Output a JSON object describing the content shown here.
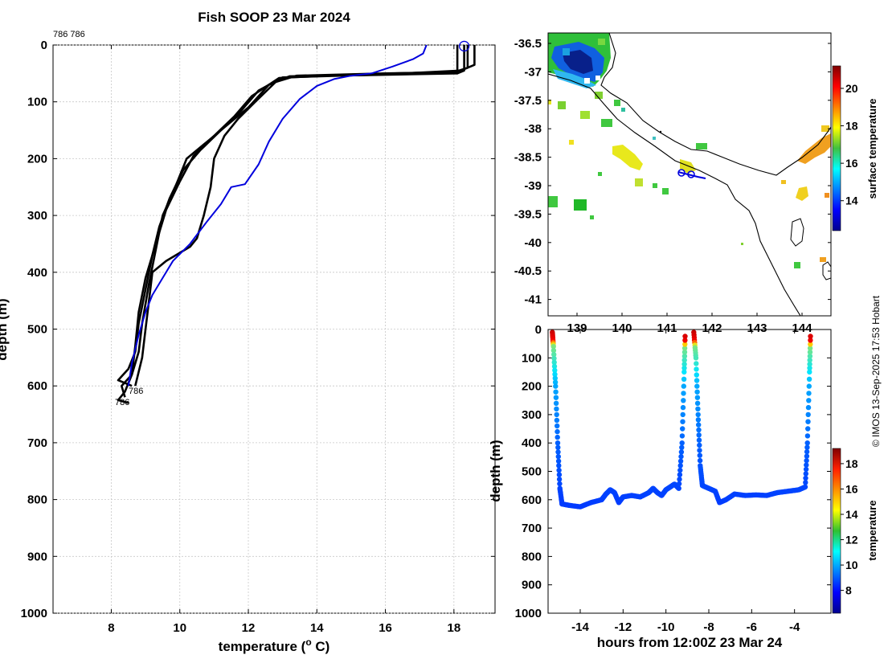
{
  "chart_data": [
    {
      "type": "line",
      "title": "Fish SOOP 23 Mar 2024",
      "xlabel": "temperature (",
      "xlabel_sup": "o",
      "xlabel_tail": " C)",
      "ylabel": "depth (m)",
      "xlim": [
        6.3,
        19.2
      ],
      "ylim": [
        0,
        1000
      ],
      "xticks": [
        8,
        10,
        12,
        14,
        16,
        18
      ],
      "yticks": [
        0,
        100,
        200,
        300,
        400,
        500,
        600,
        700,
        800,
        900,
        1000
      ],
      "grid": true,
      "annotations": {
        "top": "786 786",
        "bottom_a": "786",
        "bottom_b": "786"
      },
      "marker": {
        "temperature": 18.3,
        "depth": 2
      },
      "series": [
        {
          "name": "black-profile-1",
          "color": "#000000",
          "points": [
            [
              18.3,
              0
            ],
            [
              18.3,
              45
            ],
            [
              18.1,
              50
            ],
            [
              15.5,
              53
            ],
            [
              13.2,
              55
            ],
            [
              12.6,
              70
            ],
            [
              12.0,
              110
            ],
            [
              11.5,
              135
            ],
            [
              10.8,
              170
            ],
            [
              10.2,
              200
            ],
            [
              9.8,
              260
            ],
            [
              9.5,
              300
            ],
            [
              9.3,
              360
            ],
            [
              9.1,
              420
            ],
            [
              8.9,
              490
            ],
            [
              8.8,
              540
            ],
            [
              8.6,
              580
            ],
            [
              8.3,
              600
            ],
            [
              8.4,
              620
            ]
          ]
        },
        {
          "name": "black-profile-2",
          "color": "#000000",
          "points": [
            [
              18.6,
              0
            ],
            [
              18.6,
              35
            ],
            [
              18.2,
              45
            ],
            [
              15.8,
              52
            ],
            [
              13.0,
              57
            ],
            [
              12.3,
              80
            ],
            [
              11.8,
              115
            ],
            [
              11.2,
              150
            ],
            [
              10.6,
              185
            ],
            [
              10.1,
              220
            ],
            [
              9.7,
              270
            ],
            [
              9.4,
              320
            ],
            [
              9.2,
              370
            ],
            [
              9.0,
              430
            ],
            [
              8.8,
              490
            ],
            [
              8.7,
              540
            ],
            [
              8.5,
              570
            ],
            [
              8.2,
              590
            ],
            [
              8.6,
              600
            ]
          ]
        },
        {
          "name": "black-profile-3",
          "color": "#000000",
          "points": [
            [
              18.1,
              0
            ],
            [
              18.1,
              50
            ],
            [
              17.5,
              48
            ],
            [
              15.0,
              52
            ],
            [
              12.9,
              58
            ],
            [
              12.1,
              90
            ],
            [
              11.6,
              125
            ],
            [
              11.0,
              160
            ],
            [
              10.4,
              195
            ],
            [
              10.0,
              240
            ],
            [
              9.6,
              290
            ],
            [
              9.3,
              350
            ],
            [
              9.0,
              410
            ],
            [
              8.8,
              470
            ],
            [
              8.7,
              530
            ],
            [
              8.6,
              580
            ],
            [
              8.4,
              610
            ],
            [
              8.2,
              625
            ],
            [
              8.5,
              630
            ]
          ]
        },
        {
          "name": "black-profile-4",
          "color": "#000000",
          "points": [
            [
              18.4,
              0
            ],
            [
              18.4,
              40
            ],
            [
              18.0,
              48
            ],
            [
              16.0,
              50
            ],
            [
              13.4,
              54
            ],
            [
              12.8,
              65
            ],
            [
              12.2,
              100
            ],
            [
              11.7,
              130
            ],
            [
              11.3,
              160
            ],
            [
              11.0,
              200
            ],
            [
              10.9,
              250
            ],
            [
              10.7,
              300
            ],
            [
              10.5,
              340
            ],
            [
              10.3,
              355
            ],
            [
              9.6,
              380
            ],
            [
              9.2,
              400
            ],
            [
              9.1,
              450
            ],
            [
              9.0,
              500
            ],
            [
              8.9,
              550
            ],
            [
              8.7,
              600
            ]
          ]
        },
        {
          "name": "blue-profile",
          "color": "#0000dd",
          "points": [
            [
              17.2,
              0
            ],
            [
              17.1,
              15
            ],
            [
              16.8,
              25
            ],
            [
              16.2,
              38
            ],
            [
              15.6,
              50
            ],
            [
              15.0,
              54
            ],
            [
              14.5,
              60
            ],
            [
              14.0,
              72
            ],
            [
              13.5,
              95
            ],
            [
              13.0,
              130
            ],
            [
              12.6,
              170
            ],
            [
              12.3,
              210
            ],
            [
              11.9,
              245
            ],
            [
              11.5,
              250
            ],
            [
              11.2,
              280
            ],
            [
              10.8,
              310
            ],
            [
              10.3,
              350
            ],
            [
              9.8,
              380
            ],
            [
              9.5,
              410
            ],
            [
              9.2,
              440
            ],
            [
              9.0,
              470
            ],
            [
              8.8,
              510
            ],
            [
              8.6,
              560
            ],
            [
              8.5,
              600
            ]
          ]
        }
      ]
    },
    {
      "type": "heatmap",
      "xticks": [
        "139",
        "140",
        "141",
        "142",
        "143",
        "144"
      ],
      "yticks": [
        "-36.5",
        "-37",
        "-37.5",
        "-38",
        "-38.5",
        "-39",
        "-39.5",
        "-40",
        "-40.5",
        "-41"
      ],
      "colorbar": {
        "label": "surface temperature",
        "ticks": [
          "14",
          "16",
          "18",
          "20"
        ],
        "range": [
          12.4,
          21.2
        ]
      },
      "track_color": "#0000dd",
      "features": [
        {
          "name": "cold-patch-nw",
          "temperature": 13.5
        },
        {
          "name": "warm-patch-nw",
          "temperature": 16.5
        },
        {
          "name": "yellow-band",
          "temperature": 17.8
        },
        {
          "name": "green-patches",
          "temperature": 16.3
        },
        {
          "name": "orange-patch-east",
          "temperature": 19.0
        }
      ]
    },
    {
      "type": "scatter",
      "xlabel": "hours from 12:00Z 23 Mar 24",
      "ylabel": "depth (m)",
      "xlim": [
        -15.5,
        -2.3
      ],
      "ylim": [
        0,
        1000
      ],
      "xticks": [
        -14,
        -12,
        -10,
        -8,
        -6,
        -4
      ],
      "yticks": [
        0,
        100,
        200,
        300,
        400,
        500,
        600,
        700,
        800,
        900,
        1000
      ],
      "colorbar": {
        "label": "temperature",
        "ticks": [
          "8",
          "10",
          "12",
          "14",
          "16",
          "18"
        ],
        "range": [
          6.2,
          19.2
        ]
      },
      "dives": [
        [
          [
            -15.3,
            10
          ],
          [
            -15.25,
            60
          ],
          [
            -15.15,
            200
          ],
          [
            -15.05,
            400
          ],
          [
            -14.95,
            560
          ],
          [
            -14.85,
            615
          ],
          [
            -14.5,
            620
          ],
          [
            -14.0,
            625
          ],
          [
            -13.5,
            610
          ],
          [
            -13.0,
            600
          ],
          [
            -12.8,
            580
          ],
          [
            -12.6,
            565
          ],
          [
            -12.4,
            575
          ],
          [
            -12.2,
            610
          ],
          [
            -12.0,
            590
          ],
          [
            -11.6,
            585
          ],
          [
            -11.2,
            590
          ],
          [
            -10.8,
            575
          ],
          [
            -10.6,
            560
          ],
          [
            -10.4,
            575
          ],
          [
            -10.2,
            585
          ],
          [
            -10.0,
            565
          ],
          [
            -9.8,
            555
          ],
          [
            -9.6,
            545
          ],
          [
            -9.4,
            560
          ],
          [
            -9.25,
            400
          ],
          [
            -9.15,
            150
          ],
          [
            -9.1,
            10
          ]
        ],
        [
          [
            -8.7,
            10
          ],
          [
            -8.6,
            100
          ],
          [
            -8.5,
            300
          ],
          [
            -8.4,
            480
          ],
          [
            -8.3,
            550
          ],
          [
            -8.0,
            560
          ],
          [
            -7.7,
            570
          ],
          [
            -7.5,
            610
          ],
          [
            -7.2,
            600
          ],
          [
            -6.8,
            580
          ],
          [
            -6.3,
            585
          ],
          [
            -5.8,
            583
          ],
          [
            -5.3,
            585
          ],
          [
            -4.8,
            575
          ],
          [
            -4.3,
            570
          ],
          [
            -3.8,
            565
          ],
          [
            -3.5,
            555
          ],
          [
            -3.4,
            400
          ],
          [
            -3.3,
            150
          ],
          [
            -3.25,
            10
          ]
        ]
      ]
    }
  ],
  "credit": "© IMOS 13-Sep-2025 17:53 Hobart"
}
